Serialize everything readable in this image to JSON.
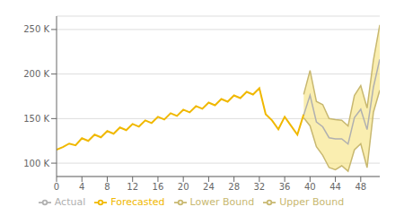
{
  "chart_data": {
    "type": "line",
    "x": [
      0,
      1,
      2,
      3,
      4,
      5,
      6,
      7,
      8,
      9,
      10,
      11,
      12,
      13,
      14,
      15,
      16,
      17,
      18,
      19,
      20,
      21,
      22,
      23,
      24,
      25,
      26,
      27,
      28,
      29,
      30,
      31,
      32,
      33,
      34,
      35,
      36,
      37,
      38,
      39,
      40,
      41,
      42,
      43,
      44,
      45,
      46,
      47,
      48,
      49,
      50,
      51
    ],
    "xlim": [
      0,
      51
    ],
    "xticks": [
      0,
      4,
      8,
      12,
      16,
      20,
      24,
      28,
      32,
      36,
      40,
      44,
      48
    ],
    "ylim": [
      85000,
      265000
    ],
    "yticks": [
      {
        "value": 100000,
        "label": "100 K"
      },
      {
        "value": 150000,
        "label": "150 K"
      },
      {
        "value": 200000,
        "label": "200 K"
      },
      {
        "value": 250000,
        "label": "250 K"
      }
    ],
    "grid": "y",
    "legend": "bottom",
    "color": "#f5e070",
    "series": [
      {
        "name": "Forecasted",
        "color": "#f0b800",
        "values": [
          115000,
          118000,
          122000,
          120000,
          128000,
          125000,
          132000,
          129000,
          136000,
          133000,
          140000,
          137000,
          144000,
          141000,
          148000,
          145000,
          152000,
          149000,
          156000,
          153000,
          160000,
          157000,
          164000,
          161000,
          168000,
          165000,
          172000,
          169000,
          176000,
          173000,
          180000,
          177000,
          184000,
          155000,
          148000,
          138000,
          152000,
          142000,
          132000,
          154782,
          null,
          null,
          null,
          null,
          null,
          null,
          null,
          null,
          null,
          null,
          null,
          null
        ]
      },
      {
        "name": "Actual",
        "color": "#b0b0b0",
        "values": [
          null,
          null,
          null,
          null,
          null,
          null,
          null,
          null,
          null,
          null,
          null,
          null,
          null,
          null,
          null,
          null,
          null,
          null,
          null,
          null,
          null,
          null,
          null,
          null,
          null,
          null,
          null,
          null,
          null,
          null,
          null,
          null,
          null,
          null,
          null,
          null,
          null,
          null,
          null,
          154013,
          176270,
          146363,
          140798,
          128533,
          127296,
          127242,
          121451,
          151080,
          160467,
          137661,
          185347,
          216539
        ]
      },
      {
        "name": "Lower Bound",
        "color": "#c8b870",
        "values": [
          null,
          null,
          null,
          null,
          null,
          null,
          null,
          null,
          null,
          null,
          null,
          null,
          null,
          null,
          null,
          null,
          null,
          null,
          null,
          null,
          null,
          null,
          null,
          null,
          null,
          null,
          null,
          null,
          null,
          null,
          null,
          null,
          null,
          null,
          null,
          null,
          null,
          null,
          null,
          150911,
          141877,
          118539,
          108768,
          95063,
          92681,
          97068,
          90878,
          114966,
          121718,
          94996,
          157231,
          181766
        ]
      },
      {
        "name": "Upper Bound",
        "color": "#c8b870",
        "values": [
          null,
          null,
          null,
          null,
          null,
          null,
          null,
          null,
          null,
          null,
          null,
          null,
          null,
          null,
          null,
          null,
          null,
          null,
          null,
          null,
          null,
          null,
          null,
          null,
          null,
          null,
          null,
          null,
          null,
          null,
          null,
          null,
          null,
          null,
          null,
          null,
          null,
          null,
          null,
          177116,
          203990,
          169260,
          165675,
          150095,
          148887,
          148111,
          141656,
          175906,
          186899,
          161852,
          215708,
          255112
        ]
      }
    ]
  }
}
